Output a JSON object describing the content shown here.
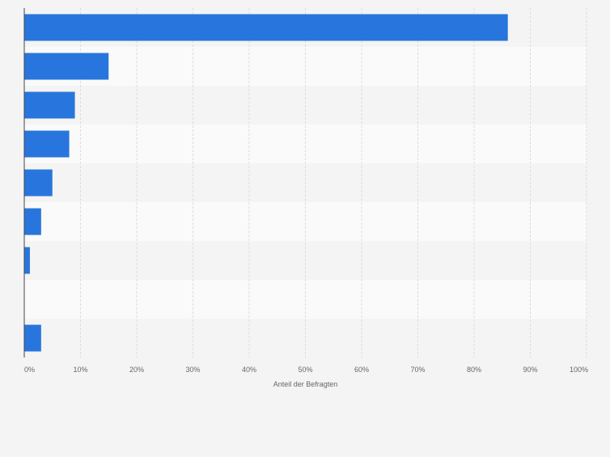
{
  "chart_data": {
    "type": "bar",
    "orientation": "horizontal",
    "categories": [
      "",
      "",
      "",
      "",
      "",
      "",
      "",
      "",
      ""
    ],
    "values": [
      86,
      15,
      9,
      8,
      5,
      3,
      1,
      0,
      3
    ],
    "xlabel": "Anteil der Befragten",
    "ylabel": "",
    "xlim": [
      0,
      100
    ],
    "xticks": [
      "0%",
      "10%",
      "20%",
      "30%",
      "40%",
      "50%",
      "60%",
      "70%",
      "80%",
      "90%",
      "100%"
    ],
    "grid": true,
    "bar_color": "#2876dd",
    "band_colors": [
      "#f4f4f4",
      "#fafafa"
    ],
    "background": "#f4f4f4"
  }
}
